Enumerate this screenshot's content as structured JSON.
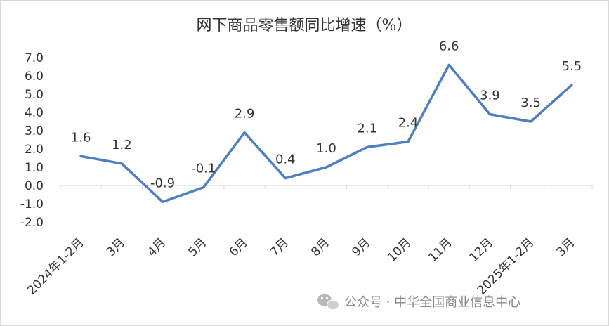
{
  "chart_data": {
    "type": "line",
    "title": "网下商品零售额同比增速（%）",
    "xlabel": "",
    "ylabel": "",
    "categories": [
      "2024年1-2月",
      "3月",
      "4月",
      "5月",
      "6月",
      "7月",
      "8月",
      "9月",
      "10月",
      "11月",
      "12月",
      "2025年1-2月",
      "3月"
    ],
    "values": [
      1.6,
      1.2,
      -0.9,
      -0.1,
      2.9,
      0.4,
      1.0,
      2.1,
      2.4,
      6.6,
      3.9,
      3.5,
      5.5
    ],
    "data_labels": [
      "1.6",
      "1.2",
      "-0.9",
      "-0.1",
      "2.9",
      "0.4",
      "1.0",
      "2.1",
      "2.4",
      "6.6",
      "3.9",
      "3.5",
      "5.5"
    ],
    "y_ticks": [
      "7.0",
      "6.0",
      "5.0",
      "4.0",
      "3.0",
      "2.0",
      "1.0",
      "0.0",
      "-1.0",
      "-2.0"
    ],
    "ylim": [
      -2.0,
      7.0
    ],
    "grid": false,
    "legend": "none",
    "line_color": "#4e7fbf"
  },
  "watermark": {
    "text": "公众号 · 中华全国商业信息中心",
    "icon": "wechat-icon"
  }
}
